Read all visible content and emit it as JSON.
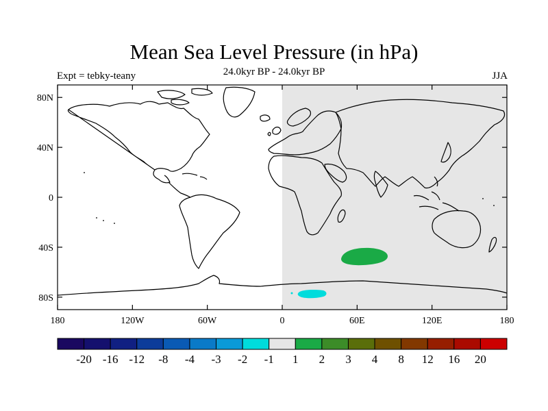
{
  "title": "Mean Sea Level Pressure (in hPa)",
  "subtitle": "24.0kyr BP - 24.0kyr BP",
  "left_label": "Expt = tebky-teany",
  "right_label": "JJA",
  "lat_ticks": [
    "80N",
    "40N",
    "0",
    "40S",
    "80S"
  ],
  "lon_ticks": [
    "180",
    "120W",
    "60W",
    "0",
    "60E",
    "120E",
    "180"
  ],
  "colorbar": {
    "colors": [
      "#1a0860",
      "#14106e",
      "#102082",
      "#0c3c9a",
      "#0a5ab4",
      "#0a7ac8",
      "#0a9ad8",
      "#00dcdc",
      "#e6e6e6",
      "#1aaa46",
      "#3c8c28",
      "#5a6e0a",
      "#6e5000",
      "#823800",
      "#961e00",
      "#aa0a00",
      "#cc0000"
    ],
    "labels": [
      "-20",
      "-16",
      "-12",
      "-8",
      "-4",
      "-3",
      "-2",
      "-1",
      "1",
      "2",
      "3",
      "4",
      "8",
      "12",
      "16",
      "20"
    ]
  },
  "fields": {
    "shaded_lon_range": [
      0,
      180
    ],
    "shaded_color": "#e6e6e6",
    "positive_patch_color": "#1aaa46",
    "negative_patch_color": "#00dcdc"
  }
}
